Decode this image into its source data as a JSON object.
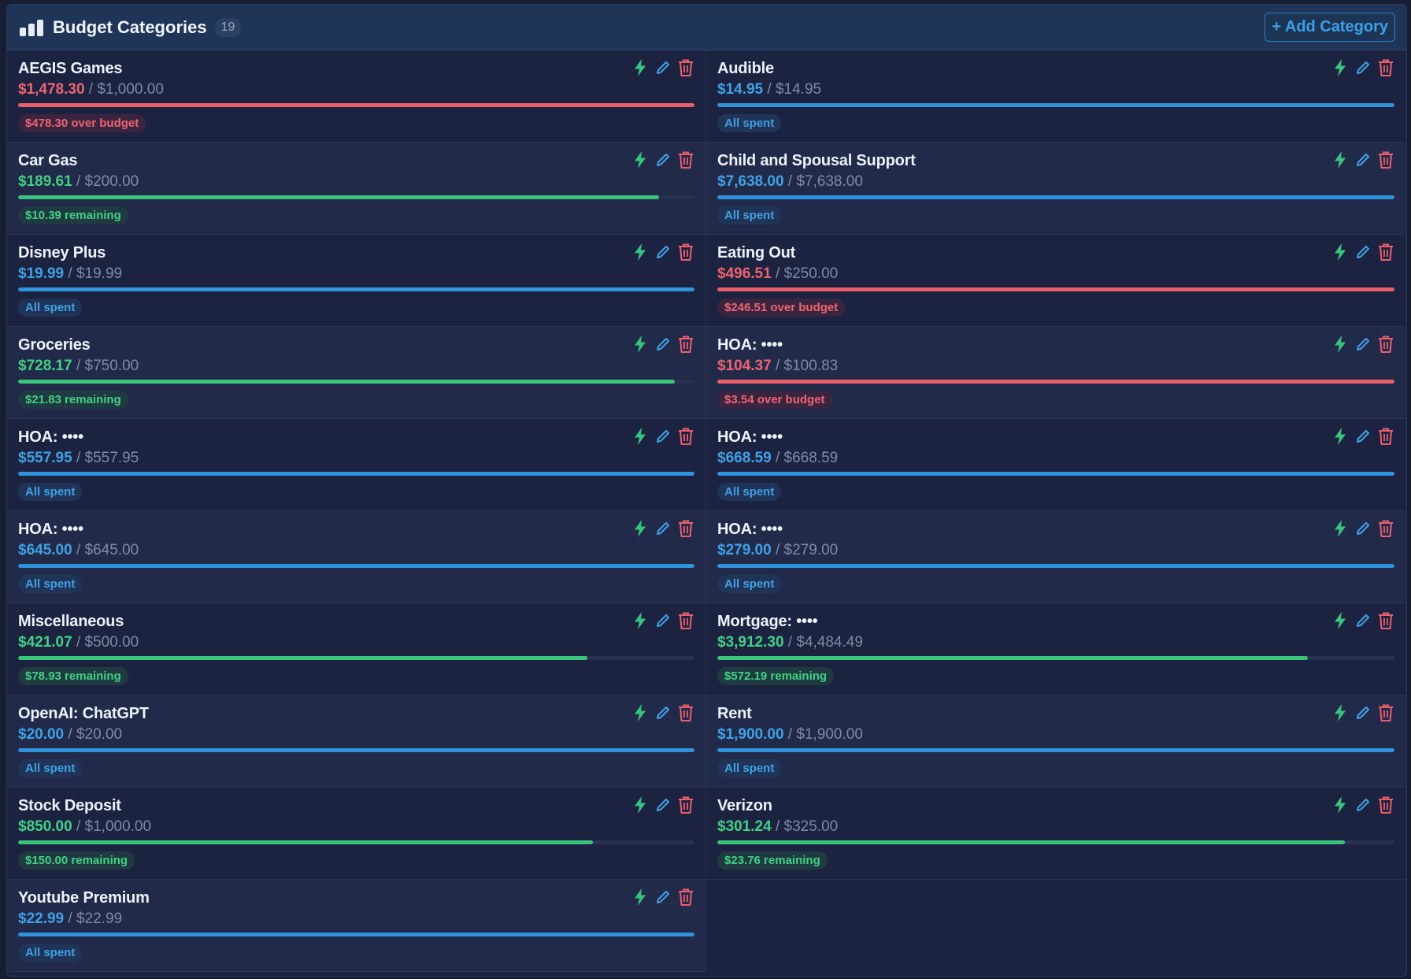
{
  "header": {
    "title": "Budget Categories",
    "count": "19",
    "add_label": "+ Add Category"
  },
  "colors": {
    "red": "#ec5e6a",
    "green": "#38c47a",
    "blue": "#2f94dc",
    "lightning": "#34c77b",
    "edit": "#3ea2e6",
    "trash": "#ec5e6a"
  },
  "categories": [
    {
      "name": "AEGIS Games",
      "spent": "$1,478.30",
      "budget": "$1,000.00",
      "status": "red",
      "progress": 1.0,
      "badge": "$478.30 over budget"
    },
    {
      "name": "Audible",
      "spent": "$14.95",
      "budget": "$14.95",
      "status": "blue",
      "progress": 1.0,
      "badge": "All spent"
    },
    {
      "name": "Car Gas",
      "spent": "$189.61",
      "budget": "$200.00",
      "status": "green",
      "progress": 0.948,
      "badge": "$10.39 remaining"
    },
    {
      "name": "Child and Spousal Support",
      "spent": "$7,638.00",
      "budget": "$7,638.00",
      "status": "blue",
      "progress": 1.0,
      "badge": "All spent"
    },
    {
      "name": "Disney Plus",
      "spent": "$19.99",
      "budget": "$19.99",
      "status": "blue",
      "progress": 1.0,
      "badge": "All spent"
    },
    {
      "name": "Eating Out",
      "spent": "$496.51",
      "budget": "$250.00",
      "status": "red",
      "progress": 1.0,
      "badge": "$246.51 over budget"
    },
    {
      "name": "Groceries",
      "spent": "$728.17",
      "budget": "$750.00",
      "status": "green",
      "progress": 0.971,
      "badge": "$21.83 remaining"
    },
    {
      "name": "HOA: ••••",
      "spent": "$104.37",
      "budget": "$100.83",
      "status": "red",
      "progress": 1.0,
      "badge": "$3.54 over budget"
    },
    {
      "name": "HOA: ••••",
      "spent": "$557.95",
      "budget": "$557.95",
      "status": "blue",
      "progress": 1.0,
      "badge": "All spent"
    },
    {
      "name": "HOA: ••••",
      "spent": "$668.59",
      "budget": "$668.59",
      "status": "blue",
      "progress": 1.0,
      "badge": "All spent"
    },
    {
      "name": "HOA: ••••",
      "spent": "$645.00",
      "budget": "$645.00",
      "status": "blue",
      "progress": 1.0,
      "badge": "All spent"
    },
    {
      "name": "HOA: ••••",
      "spent": "$279.00",
      "budget": "$279.00",
      "status": "blue",
      "progress": 1.0,
      "badge": "All spent"
    },
    {
      "name": "Miscellaneous",
      "spent": "$421.07",
      "budget": "$500.00",
      "status": "green",
      "progress": 0.842,
      "badge": "$78.93 remaining"
    },
    {
      "name": "Mortgage: ••••",
      "spent": "$3,912.30",
      "budget": "$4,484.49",
      "status": "green",
      "progress": 0.872,
      "badge": "$572.19 remaining"
    },
    {
      "name": "OpenAI: ChatGPT",
      "spent": "$20.00",
      "budget": "$20.00",
      "status": "blue",
      "progress": 1.0,
      "badge": "All spent"
    },
    {
      "name": "Rent",
      "spent": "$1,900.00",
      "budget": "$1,900.00",
      "status": "blue",
      "progress": 1.0,
      "badge": "All spent"
    },
    {
      "name": "Stock Deposit",
      "spent": "$850.00",
      "budget": "$1,000.00",
      "status": "green",
      "progress": 0.85,
      "badge": "$150.00 remaining"
    },
    {
      "name": "Verizon",
      "spent": "$301.24",
      "budget": "$325.00",
      "status": "green",
      "progress": 0.927,
      "badge": "$23.76 remaining"
    },
    {
      "name": "Youtube Premium",
      "spent": "$22.99",
      "budget": "$22.99",
      "status": "blue",
      "progress": 1.0,
      "badge": "All spent"
    }
  ]
}
